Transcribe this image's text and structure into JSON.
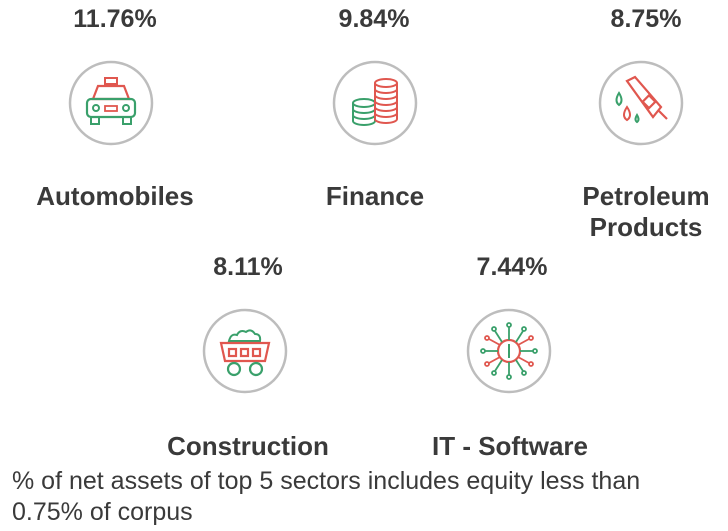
{
  "chart_data": {
    "type": "infographic",
    "title": "",
    "categories": [
      "Automobiles",
      "Finance",
      "Petroleum Products",
      "Construction",
      "IT - Software"
    ],
    "values": [
      11.76,
      9.84,
      8.75,
      8.11,
      7.44
    ],
    "value_labels": [
      "11.76%",
      "9.84%",
      "8.75%",
      "8.11%",
      "7.44%"
    ],
    "icons": [
      "car-icon",
      "coin-stacks-icon",
      "fuel-nozzle-icon",
      "mining-cart-icon",
      "microchip-icon"
    ],
    "label_lines": {
      "petroleum_line1": "Petroleum",
      "petroleum_line2": "Products"
    }
  },
  "footnote": "% of net assets of top 5 sectors includes equity less than 0.75% of corpus",
  "colors": {
    "green": "#3aa06b",
    "red": "#e0574f",
    "circle": "#bdbdbd",
    "text": "#3a3a3a"
  }
}
